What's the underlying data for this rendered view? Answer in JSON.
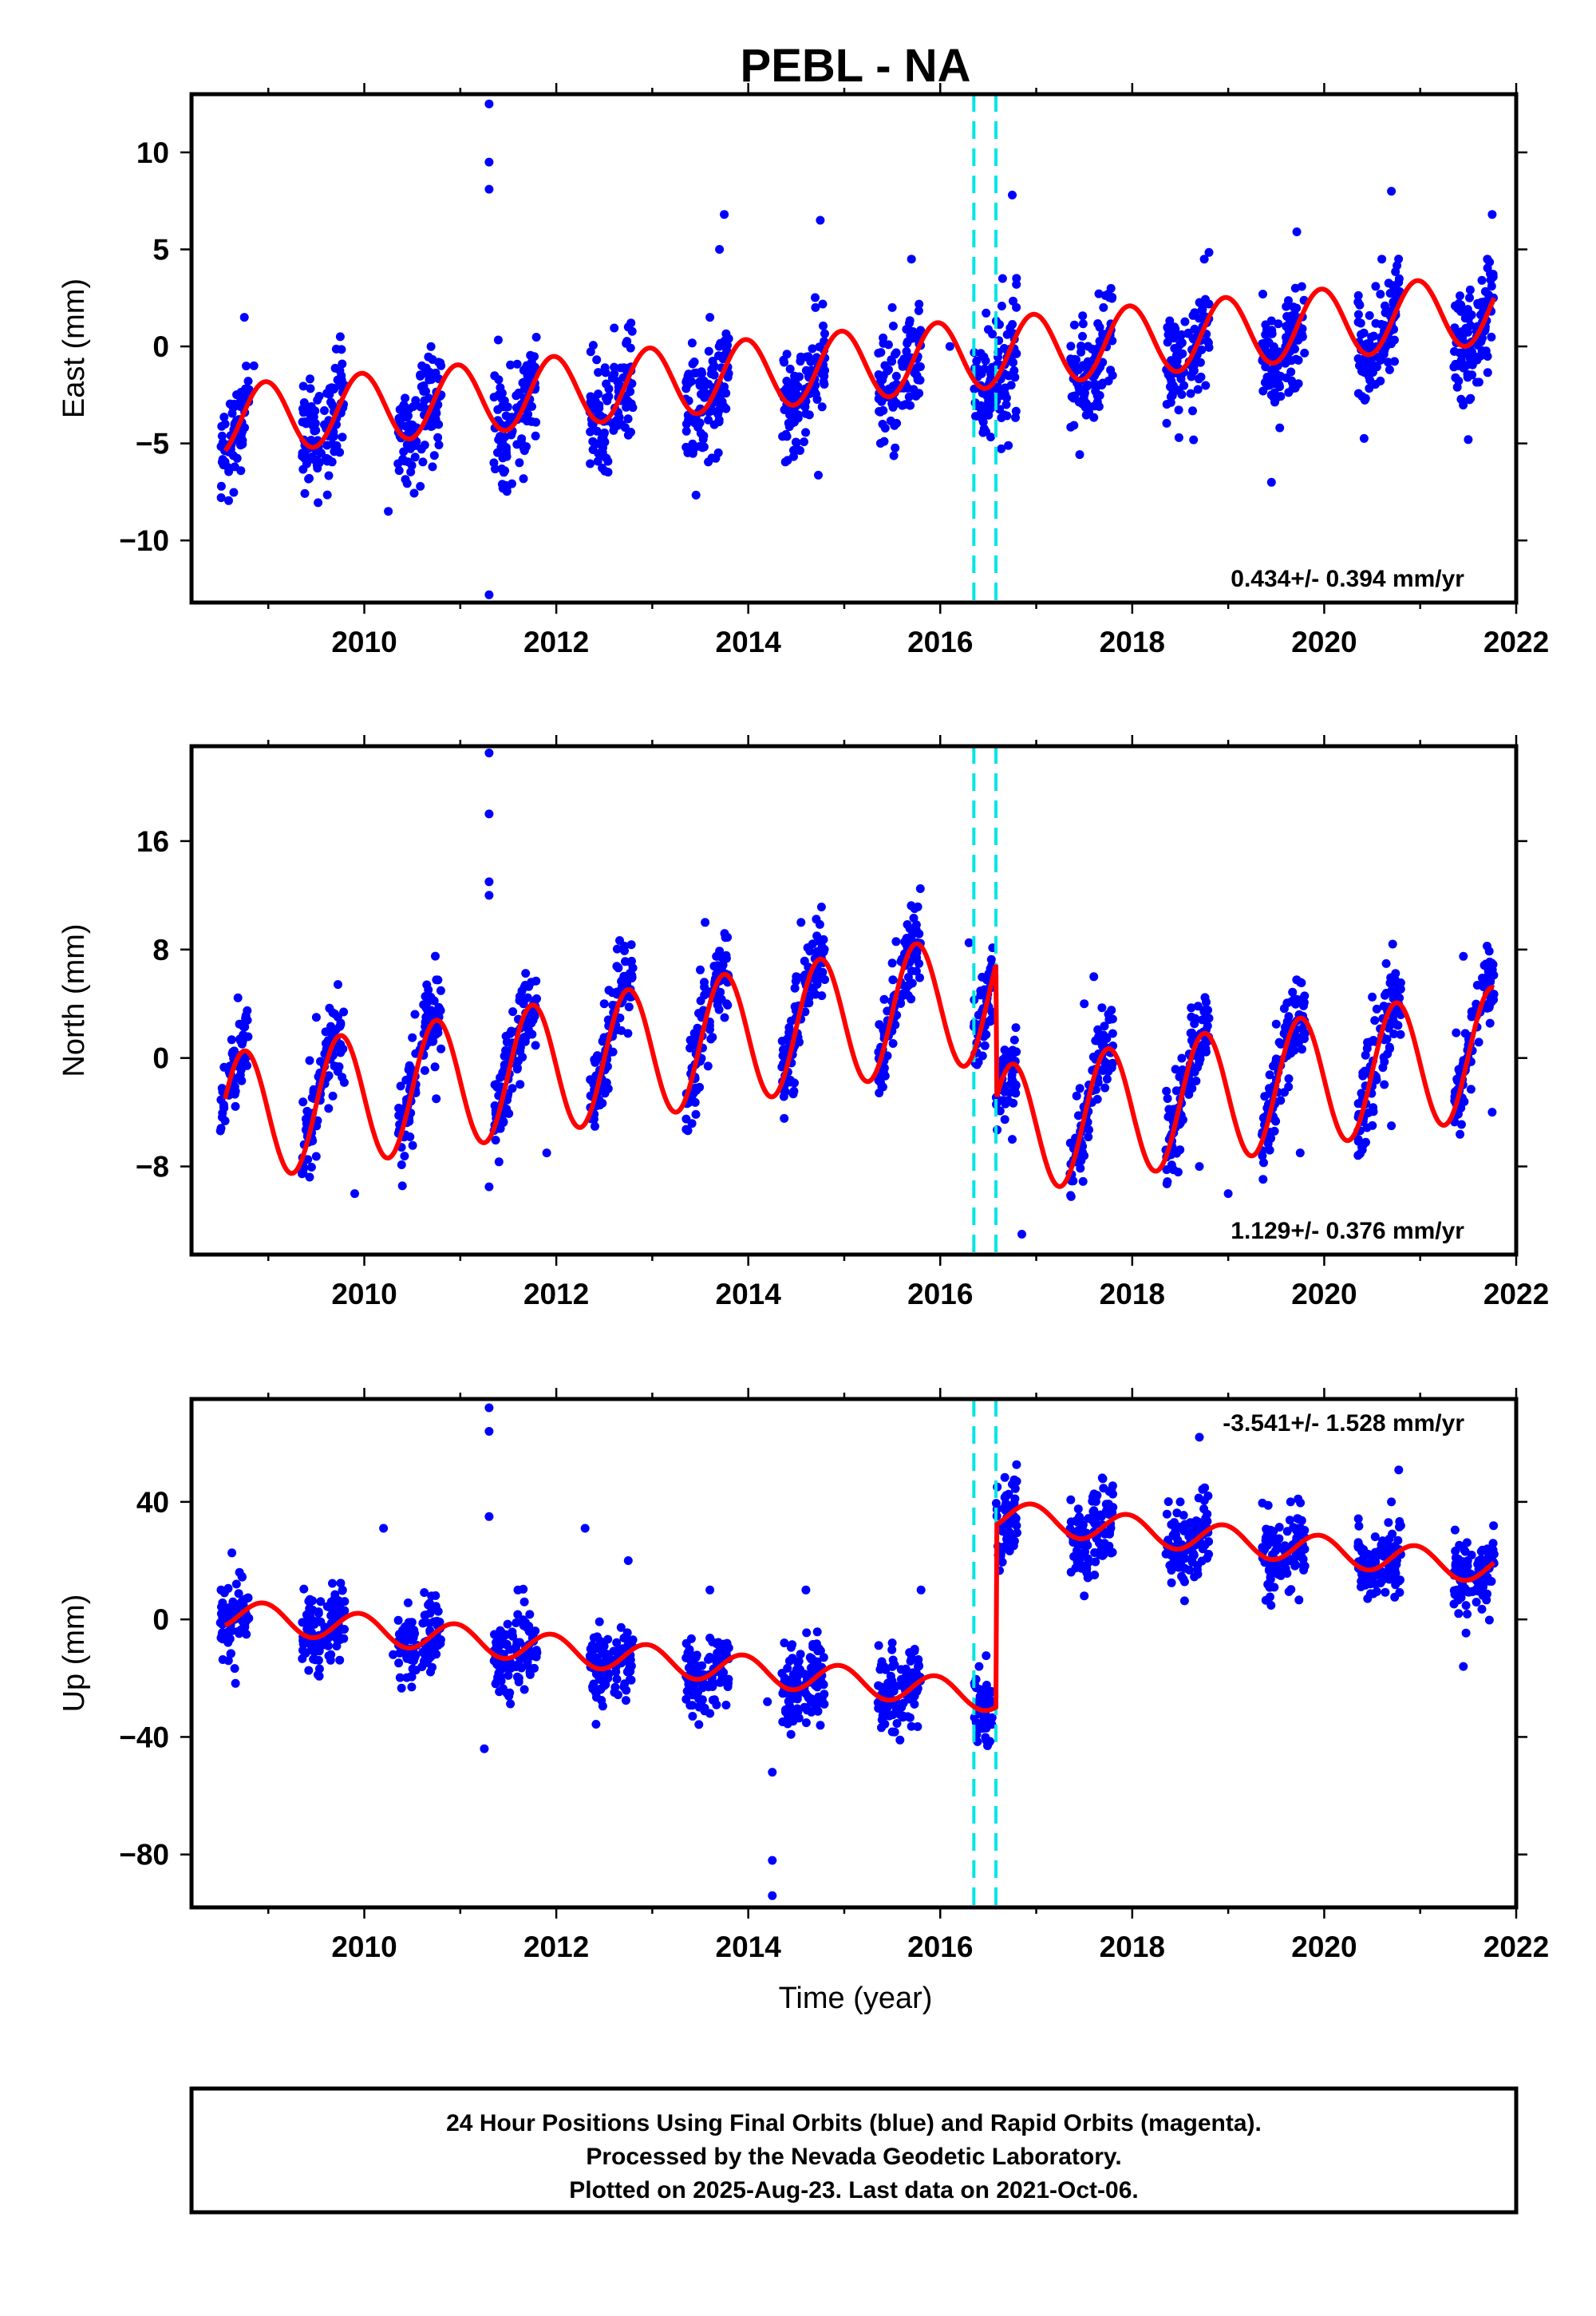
{
  "title": "PEBL - NA",
  "xlabel": "Time (year)",
  "footer": {
    "line1": "24 Hour Positions Using Final Orbits (blue) and Rapid Orbits (magenta).",
    "line2": "Processed by the Nevada Geodetic Laboratory.",
    "line3": "Plotted on 2025-Aug-23. Last data on 2021-Oct-06."
  },
  "colors": {
    "data": "#0000ff",
    "model": "#ff0000",
    "event": "#00e5e5",
    "frame": "#000000"
  },
  "chart_data": [
    {
      "type": "scatter",
      "component": "east",
      "ylabel": "East (mm)",
      "rate_label": "0.434+/- 0.394 mm/yr",
      "xlim": [
        2008.2,
        2022.0
      ],
      "ylim": [
        -13.2,
        13.0
      ],
      "xticks": [
        2010,
        2012,
        2014,
        2016,
        2018,
        2020,
        2022
      ],
      "yticks": [
        -10,
        -5,
        0,
        5,
        10
      ],
      "yticklabels": [
        "−10",
        "−5",
        "0",
        "5",
        "10"
      ],
      "event_lines_x": [
        2016.35,
        2016.58
      ],
      "model": {
        "trend_start": -3.8,
        "rate": 0.434,
        "annual_amp": 1.8,
        "annual_phase_year": 0.72,
        "offsets": []
      },
      "series": [
        {
          "x": 2008.55,
          "y": -4.0
        },
        {
          "x": 2008.75,
          "y": 1.5
        },
        {
          "x": 2008.85,
          "y": -1.0
        },
        {
          "x": 2009.55,
          "y": -5.5
        },
        {
          "x": 2009.75,
          "y": 0.5
        },
        {
          "x": 2010.25,
          "y": -8.5
        },
        {
          "x": 2010.6,
          "y": -1.0
        },
        {
          "x": 2010.8,
          "y": -2.5
        },
        {
          "x": 2011.3,
          "y": 12.5
        },
        {
          "x": 2011.3,
          "y": 9.5
        },
        {
          "x": 2011.3,
          "y": 8.1
        },
        {
          "x": 2011.3,
          "y": -12.8
        },
        {
          "x": 2011.35,
          "y": -6.0
        },
        {
          "x": 2011.7,
          "y": -1.5
        },
        {
          "x": 2012.4,
          "y": -3.0
        },
        {
          "x": 2012.75,
          "y": 1.0
        },
        {
          "x": 2013.6,
          "y": 1.5
        },
        {
          "x": 2013.7,
          "y": 5.0
        },
        {
          "x": 2013.75,
          "y": 6.8
        },
        {
          "x": 2014.4,
          "y": -3.0
        },
        {
          "x": 2014.7,
          "y": 2.0
        },
        {
          "x": 2014.75,
          "y": 6.5
        },
        {
          "x": 2015.5,
          "y": 2.0
        },
        {
          "x": 2015.7,
          "y": 4.5
        },
        {
          "x": 2016.1,
          "y": 0.0
        },
        {
          "x": 2016.65,
          "y": 3.5
        },
        {
          "x": 2016.75,
          "y": 7.8
        },
        {
          "x": 2017.5,
          "y": -2.5
        },
        {
          "x": 2017.7,
          "y": 2.0
        },
        {
          "x": 2018.5,
          "y": 0.5
        },
        {
          "x": 2018.75,
          "y": 4.5
        },
        {
          "x": 2019.45,
          "y": -2.5
        },
        {
          "x": 2019.45,
          "y": -7.0
        },
        {
          "x": 2019.7,
          "y": 3.0
        },
        {
          "x": 2020.6,
          "y": 4.5
        },
        {
          "x": 2020.7,
          "y": 8.0
        },
        {
          "x": 2021.4,
          "y": -1.0
        },
        {
          "x": 2021.5,
          "y": -4.8
        },
        {
          "x": 2021.7,
          "y": 4.5
        },
        {
          "x": 2021.75,
          "y": 6.8
        }
      ]
    },
    {
      "type": "scatter",
      "component": "north",
      "ylabel": "North (mm)",
      "rate_label": "1.129+/- 0.376 mm/yr",
      "xlim": [
        2008.2,
        2022.0
      ],
      "ylim": [
        -14.5,
        23.0
      ],
      "xticks": [
        2010,
        2012,
        2014,
        2016,
        2018,
        2020,
        2022
      ],
      "yticks": [
        -8,
        0,
        8,
        16
      ],
      "yticklabels": [
        "−8",
        "0",
        "8",
        "16"
      ],
      "event_lines_x": [
        2016.35,
        2016.58
      ],
      "model": {
        "trend_start": -4.5,
        "rate": 1.129,
        "annual_amp": 4.8,
        "annual_phase_year": 0.5,
        "offsets": [
          {
            "x": 2016.58,
            "dy": -10.0
          }
        ]
      },
      "series": [
        {
          "x": 2008.6,
          "y": -1.0
        },
        {
          "x": 2008.7,
          "y": 2.5
        },
        {
          "x": 2009.5,
          "y": 3.0
        },
        {
          "x": 2009.9,
          "y": -10.0
        },
        {
          "x": 2010.5,
          "y": 1.5
        },
        {
          "x": 2010.75,
          "y": -3.0
        },
        {
          "x": 2011.3,
          "y": 22.5
        },
        {
          "x": 2011.3,
          "y": 18.0
        },
        {
          "x": 2011.3,
          "y": 13.0
        },
        {
          "x": 2011.3,
          "y": 12.0
        },
        {
          "x": 2011.3,
          "y": -9.5
        },
        {
          "x": 2011.5,
          "y": 0.5
        },
        {
          "x": 2011.9,
          "y": -7.0
        },
        {
          "x": 2012.5,
          "y": 4.0
        },
        {
          "x": 2013.5,
          "y": 6.5
        },
        {
          "x": 2013.55,
          "y": 10.0
        },
        {
          "x": 2014.5,
          "y": 6.0
        },
        {
          "x": 2014.55,
          "y": 10.0
        },
        {
          "x": 2015.5,
          "y": 7.0
        },
        {
          "x": 2016.3,
          "y": 8.5
        },
        {
          "x": 2016.75,
          "y": -6.0
        },
        {
          "x": 2016.85,
          "y": -13.0
        },
        {
          "x": 2017.5,
          "y": 4.0
        },
        {
          "x": 2017.6,
          "y": 6.0
        },
        {
          "x": 2018.5,
          "y": -3.0
        },
        {
          "x": 2018.7,
          "y": -8.0
        },
        {
          "x": 2019.0,
          "y": -10.0
        },
        {
          "x": 2019.5,
          "y": 2.5
        },
        {
          "x": 2019.75,
          "y": -7.0
        },
        {
          "x": 2020.5,
          "y": 4.5
        },
        {
          "x": 2020.7,
          "y": -5.0
        },
        {
          "x": 2021.45,
          "y": 7.5
        },
        {
          "x": 2021.75,
          "y": -4.0
        }
      ]
    },
    {
      "type": "scatter",
      "component": "up",
      "ylabel": "Up (mm)",
      "rate_label": "-3.541+/- 1.528 mm/yr",
      "xlim": [
        2008.2,
        2022.0
      ],
      "ylim": [
        -98,
        75
      ],
      "xticks": [
        2010,
        2012,
        2014,
        2016,
        2018,
        2020,
        2022
      ],
      "yticks": [
        -80,
        -40,
        0,
        40
      ],
      "yticklabels": [
        "−80",
        "−40",
        "0",
        "40"
      ],
      "event_lines_x": [
        2016.35,
        2016.58
      ],
      "model": {
        "trend_start": 2.0,
        "rate": -3.541,
        "annual_amp": 5.0,
        "annual_phase_year": 0.7,
        "offsets": [
          {
            "x": 2016.58,
            "dy": 62.0
          }
        ]
      },
      "series": [
        {
          "x": 2008.6,
          "y": 2.0
        },
        {
          "x": 2008.7,
          "y": 16.0
        },
        {
          "x": 2009.7,
          "y": 5.0
        },
        {
          "x": 2010.2,
          "y": 31.0
        },
        {
          "x": 2010.3,
          "y": -12.0
        },
        {
          "x": 2010.7,
          "y": 8.0
        },
        {
          "x": 2011.3,
          "y": 72.0
        },
        {
          "x": 2011.3,
          "y": 64.0
        },
        {
          "x": 2011.3,
          "y": 35.0
        },
        {
          "x": 2011.25,
          "y": -44.0
        },
        {
          "x": 2011.6,
          "y": 10.0
        },
        {
          "x": 2012.3,
          "y": 31.0
        },
        {
          "x": 2012.75,
          "y": 20.0
        },
        {
          "x": 2013.6,
          "y": 10.0
        },
        {
          "x": 2013.6,
          "y": -32.0
        },
        {
          "x": 2014.2,
          "y": -28.0
        },
        {
          "x": 2014.25,
          "y": -52.0
        },
        {
          "x": 2014.25,
          "y": -82.0
        },
        {
          "x": 2014.25,
          "y": -94.0
        },
        {
          "x": 2014.6,
          "y": 10.0
        },
        {
          "x": 2015.5,
          "y": -8.0
        },
        {
          "x": 2015.8,
          "y": 10.0
        },
        {
          "x": 2016.65,
          "y": 30.0
        },
        {
          "x": 2016.75,
          "y": 46.0
        },
        {
          "x": 2017.5,
          "y": 8.0
        },
        {
          "x": 2017.7,
          "y": 22.0
        },
        {
          "x": 2018.5,
          "y": 40.0
        },
        {
          "x": 2018.7,
          "y": 62.0
        },
        {
          "x": 2019.5,
          "y": 18.0
        },
        {
          "x": 2019.65,
          "y": 40.0
        },
        {
          "x": 2020.6,
          "y": 24.0
        },
        {
          "x": 2020.7,
          "y": 40.0
        },
        {
          "x": 2021.4,
          "y": 2.0
        },
        {
          "x": 2021.45,
          "y": -16.0
        },
        {
          "x": 2021.7,
          "y": 24.0
        }
      ]
    }
  ]
}
